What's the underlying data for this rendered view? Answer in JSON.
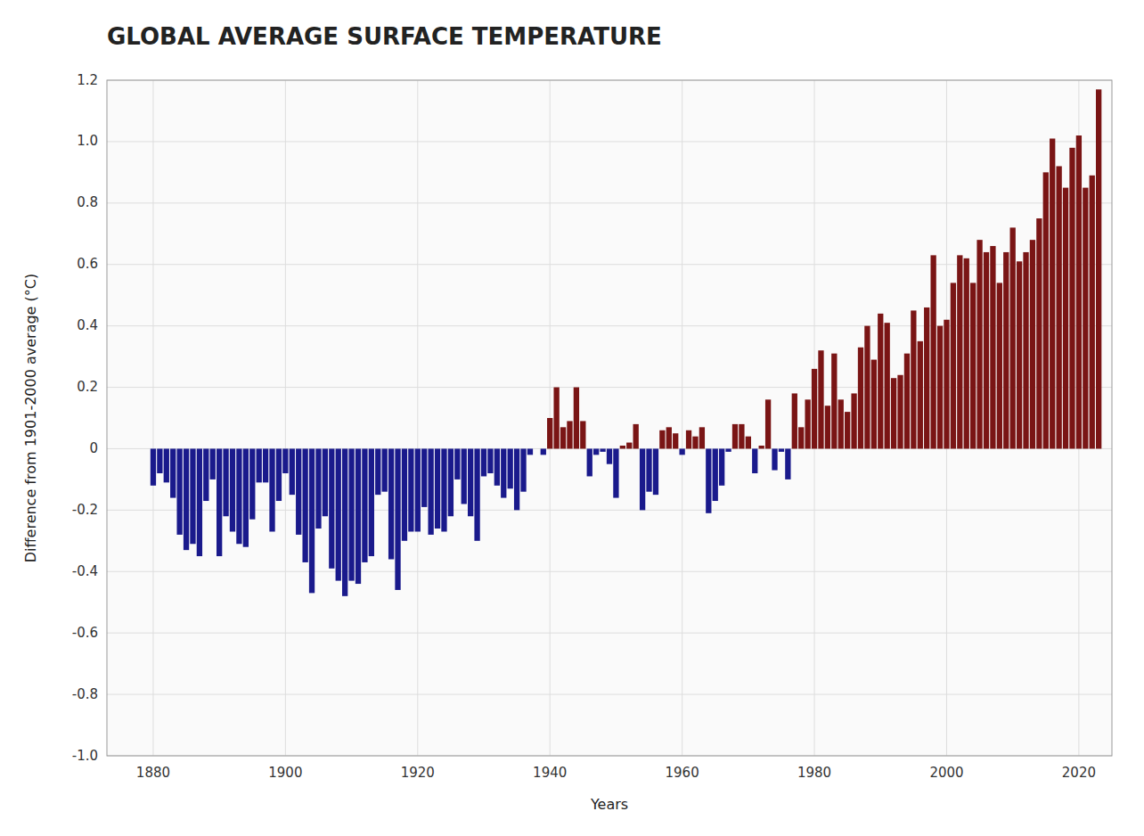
{
  "chart_data": {
    "type": "bar",
    "title": "GLOBAL AVERAGE SURFACE TEMPERATURE",
    "xlabel": "Years",
    "ylabel": "Difference from 1901-2000 average (°C)",
    "x": [
      1880,
      1881,
      1882,
      1883,
      1884,
      1885,
      1886,
      1887,
      1888,
      1889,
      1890,
      1891,
      1892,
      1893,
      1894,
      1895,
      1896,
      1897,
      1898,
      1899,
      1900,
      1901,
      1902,
      1903,
      1904,
      1905,
      1906,
      1907,
      1908,
      1909,
      1910,
      1911,
      1912,
      1913,
      1914,
      1915,
      1916,
      1917,
      1918,
      1919,
      1920,
      1921,
      1922,
      1923,
      1924,
      1925,
      1926,
      1927,
      1928,
      1929,
      1930,
      1931,
      1932,
      1933,
      1934,
      1935,
      1936,
      1937,
      1938,
      1939,
      1940,
      1941,
      1942,
      1943,
      1944,
      1945,
      1946,
      1947,
      1948,
      1949,
      1950,
      1951,
      1952,
      1953,
      1954,
      1955,
      1956,
      1957,
      1958,
      1959,
      1960,
      1961,
      1962,
      1963,
      1964,
      1965,
      1966,
      1967,
      1968,
      1969,
      1970,
      1971,
      1972,
      1973,
      1974,
      1975,
      1976,
      1977,
      1978,
      1979,
      1980,
      1981,
      1982,
      1983,
      1984,
      1985,
      1986,
      1987,
      1988,
      1989,
      1990,
      1991,
      1992,
      1993,
      1994,
      1995,
      1996,
      1997,
      1998,
      1999,
      2000,
      2001,
      2002,
      2003,
      2004,
      2005,
      2006,
      2007,
      2008,
      2009,
      2010,
      2011,
      2012,
      2013,
      2014,
      2015,
      2016,
      2017,
      2018,
      2019,
      2020,
      2021,
      2022,
      2023
    ],
    "values": [
      -0.12,
      -0.08,
      -0.11,
      -0.16,
      -0.28,
      -0.33,
      -0.31,
      -0.35,
      -0.17,
      -0.1,
      -0.35,
      -0.22,
      -0.27,
      -0.31,
      -0.32,
      -0.23,
      -0.11,
      -0.11,
      -0.27,
      -0.17,
      -0.08,
      -0.15,
      -0.28,
      -0.37,
      -0.47,
      -0.26,
      -0.22,
      -0.39,
      -0.43,
      -0.48,
      -0.43,
      -0.44,
      -0.37,
      -0.35,
      -0.15,
      -0.14,
      -0.36,
      -0.46,
      -0.3,
      -0.27,
      -0.27,
      -0.19,
      -0.28,
      -0.26,
      -0.27,
      -0.22,
      -0.1,
      -0.18,
      -0.22,
      -0.3,
      -0.09,
      -0.08,
      -0.12,
      -0.16,
      -0.13,
      -0.2,
      -0.14,
      -0.02,
      -0.0,
      -0.02,
      0.1,
      0.2,
      0.07,
      0.09,
      0.2,
      0.09,
      -0.09,
      -0.02,
      -0.01,
      -0.05,
      -0.16,
      0.01,
      0.02,
      0.08,
      -0.2,
      -0.14,
      -0.15,
      0.06,
      0.07,
      0.05,
      -0.02,
      0.06,
      0.04,
      0.07,
      -0.21,
      -0.17,
      -0.12,
      -0.01,
      0.08,
      0.08,
      0.04,
      -0.08,
      0.01,
      0.16,
      -0.07,
      -0.01,
      -0.1,
      0.18,
      0.07,
      0.16,
      0.26,
      0.32,
      0.14,
      0.31,
      0.16,
      0.12,
      0.18,
      0.33,
      0.4,
      0.29,
      0.44,
      0.41,
      0.23,
      0.24,
      0.31,
      0.45,
      0.35,
      0.46,
      0.63,
      0.4,
      0.42,
      0.54,
      0.63,
      0.62,
      0.54,
      0.68,
      0.64,
      0.66,
      0.54,
      0.64,
      0.72,
      0.61,
      0.64,
      0.68,
      0.75,
      0.9,
      1.01,
      0.92,
      0.85,
      0.98,
      1.02,
      0.85,
      0.89,
      1.17
    ],
    "colors": [
      "#1a1a8c",
      "#1a1a8c",
      "#1a1a8c",
      "#1a1a8c",
      "#1a1a8c",
      "#1a1a8c",
      "#1a1a8c",
      "#1a1a8c",
      "#1a1a8c",
      "#1a1a8c",
      "#1a1a8c",
      "#1a1a8c",
      "#1a1a8c",
      "#1a1a8c",
      "#1a1a8c",
      "#1a1a8c",
      "#1a1a8c",
      "#1a1a8c",
      "#1a1a8c",
      "#1a1a8c",
      "#1a1a8c",
      "#1a1a8c",
      "#1a1a8c",
      "#1a1a8c",
      "#1a1a8c",
      "#1a1a8c",
      "#1a1a8c",
      "#1a1a8c",
      "#1a1a8c",
      "#1a1a8c",
      "#1a1a8c",
      "#1a1a8c",
      "#1a1a8c",
      "#1a1a8c",
      "#1a1a8c",
      "#1a1a8c",
      "#1a1a8c",
      "#1a1a8c",
      "#1a1a8c",
      "#1a1a8c",
      "#1a1a8c",
      "#1a1a8c",
      "#1a1a8c",
      "#1a1a8c",
      "#1a1a8c",
      "#1a1a8c",
      "#1a1a8c",
      "#1a1a8c",
      "#1a1a8c",
      "#1a1a8c",
      "#1a1a8c",
      "#1a1a8c",
      "#1a1a8c",
      "#1a1a8c",
      "#1a1a8c",
      "#1a1a8c",
      "#1a1a8c",
      "#1a1a8c",
      "#7a1515",
      "#1a1a8c",
      "#7a1515",
      "#7a1515",
      "#7a1515",
      "#7a1515",
      "#7a1515",
      "#7a1515",
      "#1a1a8c",
      "#1a1a8c",
      "#1a1a8c",
      "#1a1a8c",
      "#1a1a8c",
      "#7a1515",
      "#7a1515",
      "#7a1515",
      "#1a1a8c",
      "#1a1a8c",
      "#1a1a8c",
      "#7a1515",
      "#7a1515",
      "#7a1515",
      "#1a1a8c",
      "#7a1515",
      "#7a1515",
      "#7a1515",
      "#1a1a8c",
      "#1a1a8c",
      "#1a1a8c",
      "#1a1a8c",
      "#7a1515",
      "#7a1515",
      "#7a1515",
      "#1a1a8c",
      "#7a1515",
      "#7a1515",
      "#1a1a8c",
      "#1a1a8c",
      "#1a1a8c",
      "#7a1515",
      "#7a1515",
      "#7a1515",
      "#7a1515",
      "#7a1515",
      "#7a1515",
      "#7a1515",
      "#7a1515",
      "#7a1515",
      "#7a1515",
      "#7a1515",
      "#7a1515",
      "#7a1515",
      "#7a1515",
      "#7a1515",
      "#7a1515",
      "#7a1515",
      "#7a1515",
      "#7a1515",
      "#7a1515",
      "#7a1515",
      "#7a1515",
      "#7a1515",
      "#7a1515",
      "#7a1515",
      "#7a1515",
      "#7a1515",
      "#7a1515",
      "#7a1515",
      "#7a1515",
      "#7a1515",
      "#7a1515",
      "#7a1515",
      "#7a1515",
      "#7a1515",
      "#7a1515",
      "#7a1515",
      "#7a1515",
      "#7a1515",
      "#7a1515",
      "#7a1515",
      "#7a1515",
      "#7a1515",
      "#7a1515",
      "#7a1515",
      "#7a1515",
      "#7a1515"
    ],
    "xlim": [
      1873,
      2025
    ],
    "xticks": [
      1880,
      1900,
      1920,
      1940,
      1960,
      1980,
      2000,
      2020
    ],
    "ylim": [
      -1.0,
      1.2
    ],
    "yticks": [
      {
        "value": -1.0,
        "label": "-1.0"
      },
      -0.8,
      -0.6,
      -0.4,
      -0.2,
      0,
      0.2,
      0.4,
      0.6,
      0.8,
      {
        "value": 1.0,
        "label": "1.0"
      },
      1.2
    ],
    "grid": true
  }
}
